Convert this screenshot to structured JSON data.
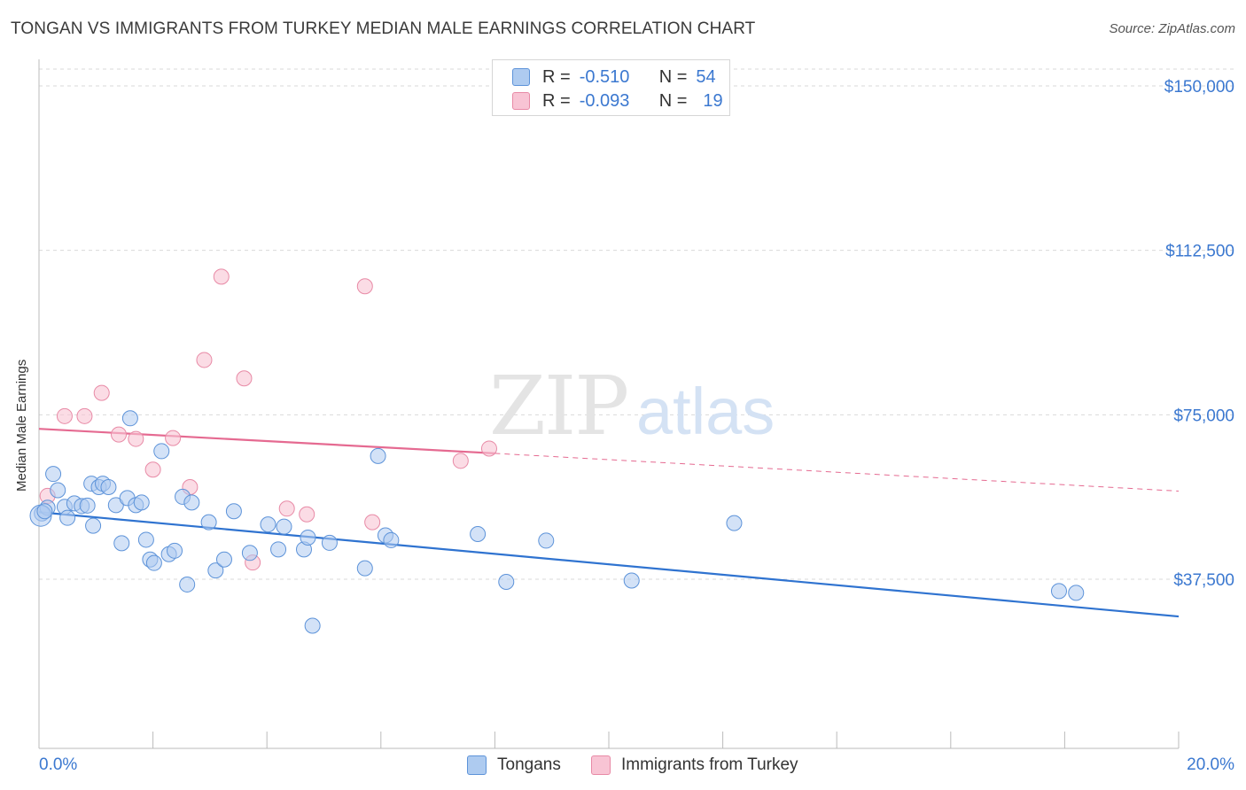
{
  "title": "TONGAN VS IMMIGRANTS FROM TURKEY MEDIAN MALE EARNINGS CORRELATION CHART",
  "source": "Source: ZipAtlas.com",
  "legend_stats": [
    {
      "r_label": "R =",
      "r_value": "-0.510",
      "n_label": "N =",
      "n_value": "54"
    },
    {
      "r_label": "R =",
      "r_value": "-0.093",
      "n_label": "N =",
      "n_value": "19"
    }
  ],
  "colors": {
    "tongans_fill": "#aecbf0",
    "tongans_stroke": "#5d93d9",
    "tongans_line": "#2f73d0",
    "turkey_fill": "#f8c4d4",
    "turkey_stroke": "#e88aa6",
    "turkey_line": "#e56a91",
    "axis_text": "#3b78d0"
  },
  "chart_data": {
    "type": "scatter",
    "title": "TONGAN VS IMMIGRANTS FROM TURKEY MEDIAN MALE EARNINGS CORRELATION CHART",
    "xlabel": "",
    "ylabel": "Median Male Earnings",
    "x_tick_labels": [
      "0.0%",
      "20.0%"
    ],
    "y_tick_labels": [
      "$37,500",
      "$75,000",
      "$112,500",
      "$150,000"
    ],
    "y_ticks": [
      37500,
      75000,
      112500,
      150000
    ],
    "xlim": [
      0,
      20
    ],
    "ylim": [
      0,
      155000
    ],
    "grid": true,
    "legend_position": "bottom",
    "watermark": "ZIPatlas",
    "series": [
      {
        "name": "Tongans",
        "r": -0.51,
        "n": 54,
        "trend": {
          "x0": 0.0,
          "y0": 52800,
          "x1": 20.0,
          "y1": 29000,
          "dashed_to": null
        },
        "points": [
          [
            0.05,
            52500
          ],
          [
            0.15,
            53800
          ],
          [
            0.25,
            61500
          ],
          [
            0.33,
            57800
          ],
          [
            0.45,
            54000
          ],
          [
            0.5,
            51500
          ],
          [
            0.62,
            54800
          ],
          [
            0.75,
            54200
          ],
          [
            0.85,
            54300
          ],
          [
            0.92,
            59300
          ],
          [
            0.95,
            49700
          ],
          [
            1.05,
            58500
          ],
          [
            1.12,
            59300
          ],
          [
            1.22,
            58500
          ],
          [
            1.35,
            54400
          ],
          [
            1.45,
            45700
          ],
          [
            1.55,
            56000
          ],
          [
            1.6,
            74200
          ],
          [
            1.7,
            54400
          ],
          [
            1.8,
            55000
          ],
          [
            1.88,
            46500
          ],
          [
            1.95,
            42000
          ],
          [
            2.02,
            41200
          ],
          [
            2.15,
            66700
          ],
          [
            2.28,
            43200
          ],
          [
            2.38,
            44000
          ],
          [
            2.52,
            56300
          ],
          [
            2.6,
            36300
          ],
          [
            2.68,
            55000
          ],
          [
            2.98,
            50500
          ],
          [
            3.1,
            39500
          ],
          [
            3.25,
            42000
          ],
          [
            3.42,
            53000
          ],
          [
            3.7,
            43500
          ],
          [
            4.02,
            50000
          ],
          [
            4.2,
            44300
          ],
          [
            4.3,
            49500
          ],
          [
            4.65,
            44300
          ],
          [
            4.72,
            47000
          ],
          [
            4.8,
            26900
          ],
          [
            5.1,
            45800
          ],
          [
            5.72,
            40000
          ],
          [
            5.95,
            65600
          ],
          [
            6.08,
            47500
          ],
          [
            6.18,
            46400
          ],
          [
            7.7,
            47800
          ],
          [
            8.2,
            36900
          ],
          [
            8.9,
            46300
          ],
          [
            10.4,
            37200
          ],
          [
            12.2,
            50300
          ],
          [
            17.9,
            34800
          ],
          [
            18.2,
            34400
          ],
          [
            0.0,
            52000
          ],
          [
            0.1,
            53000
          ]
        ]
      },
      {
        "name": "Immigrants from Turkey",
        "r": -0.093,
        "n": 19,
        "trend": {
          "x0": 0.0,
          "y0": 71800,
          "x1": 8.0,
          "y1": 66200,
          "dashed_x1": 20.0,
          "dashed_y1": 57600
        },
        "points": [
          [
            0.15,
            56500
          ],
          [
            0.45,
            74700
          ],
          [
            0.8,
            74700
          ],
          [
            1.1,
            80000
          ],
          [
            1.4,
            70500
          ],
          [
            1.7,
            69500
          ],
          [
            2.0,
            62500
          ],
          [
            2.35,
            69700
          ],
          [
            2.65,
            58500
          ],
          [
            2.9,
            87500
          ],
          [
            3.2,
            106500
          ],
          [
            3.6,
            83300
          ],
          [
            3.75,
            41300
          ],
          [
            4.35,
            53600
          ],
          [
            4.7,
            52300
          ],
          [
            5.72,
            104300
          ],
          [
            5.85,
            50500
          ],
          [
            7.4,
            64500
          ],
          [
            7.9,
            67300
          ]
        ]
      }
    ]
  },
  "x_axis_labels": {
    "left": "0.0%",
    "right": "20.0%"
  },
  "y_axis_labels": [
    "$150,000",
    "$112,500",
    "$75,000",
    "$37,500"
  ],
  "bottom_legend": [
    {
      "label": "Tongans"
    },
    {
      "label": "Immigrants from Turkey"
    }
  ]
}
